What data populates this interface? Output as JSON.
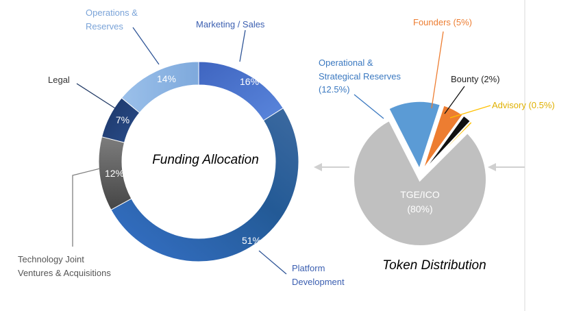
{
  "chart_data": [
    {
      "type": "pie",
      "title": "Funding Allocation",
      "slices": [
        {
          "label": "Marketing / Sales",
          "value": 16,
          "value_label": "16%",
          "color": "#4472c4",
          "label_color": "#3a5eb0"
        },
        {
          "label": "Platform Development",
          "value": 51,
          "value_label": "51%",
          "color": "#2e5b97",
          "label_color": "#3a5eb0"
        },
        {
          "label": "Technology Joint Ventures & Acquisitions",
          "label_lines": [
            "Technology Joint",
            "Ventures  &  Acquisitions"
          ],
          "value": 12,
          "value_label": "12%",
          "color": "#6b6b6b",
          "label_color": "#555555"
        },
        {
          "label": "Legal",
          "value": 7,
          "value_label": "7%",
          "color": "#203f74",
          "label_color": "#333333"
        },
        {
          "label": "Operations & Reserves",
          "label_lines": [
            "Operations &",
            "Reserves"
          ],
          "value": 14,
          "value_label": "14%",
          "color": "#8db4e2",
          "label_color": "#7aa3d8"
        }
      ]
    },
    {
      "type": "pie",
      "title": "Token Distribution",
      "slices": [
        {
          "label": "TGE/ICO",
          "label_lines": [
            "TGE/ICO",
            "(80%)"
          ],
          "value": 80,
          "color": "#c0c0c0",
          "label_color": "#ffffff"
        },
        {
          "label": "Operational & Strategical Reserves (12.5%)",
          "label_lines": [
            "Operational &",
            "Strategical Reserves",
            "(12.5%)"
          ],
          "value": 12.5,
          "color": "#5b9bd5",
          "label_color": "#3a78c0"
        },
        {
          "label": "Founders (5%)",
          "value": 5,
          "color": "#ed7d31",
          "label_color": "#ed7d31"
        },
        {
          "label": "Bounty (2%)",
          "value": 2,
          "color": "#111111",
          "label_color": "#222222"
        },
        {
          "label": "Advisory (0.5%)",
          "value": 0.5,
          "color": "#ffc000",
          "label_color": "#e0b000"
        }
      ]
    }
  ]
}
